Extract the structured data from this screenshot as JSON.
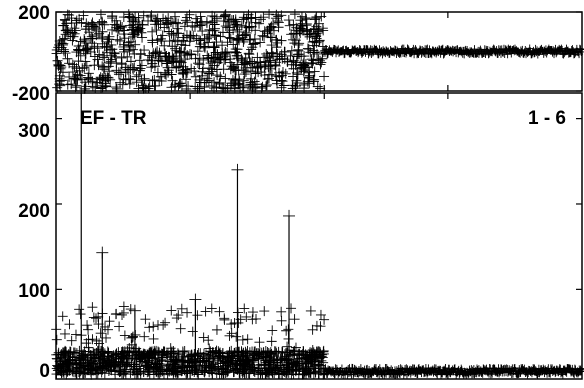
{
  "chart_data": [
    {
      "type": "scatter",
      "panel": "top",
      "label": "",
      "y_ticks": [
        200,
        -200
      ],
      "y_tick_labels": [
        "200",
        "-200"
      ],
      "ylim": [
        -200,
        200
      ],
      "xlim": [
        0,
        1000
      ],
      "x_breakpoint": 510,
      "noisy_amplitude": 200,
      "flat_amplitude": 15,
      "marker": "plus",
      "grid": false
    },
    {
      "type": "scatter",
      "panel": "bottom",
      "label": "EF - TR",
      "label_right": "1 - 6",
      "y_ticks": [
        300,
        200,
        100,
        0
      ],
      "y_tick_labels": [
        "300",
        "200",
        "100",
        "0"
      ],
      "ylim": [
        -5,
        330
      ],
      "xlim": [
        0,
        1000
      ],
      "x_breakpoint": 510,
      "noisy_amplitude": 50,
      "flat_amplitude": 8,
      "marker": "plus",
      "spikes": [
        {
          "x": 48,
          "y": 330
        },
        {
          "x": 88,
          "y": 143
        },
        {
          "x": 345,
          "y": 240
        },
        {
          "x": 443,
          "y": 186
        },
        {
          "x": 265,
          "y": 88
        },
        {
          "x": 150,
          "y": 75
        }
      ],
      "grid": false
    }
  ]
}
